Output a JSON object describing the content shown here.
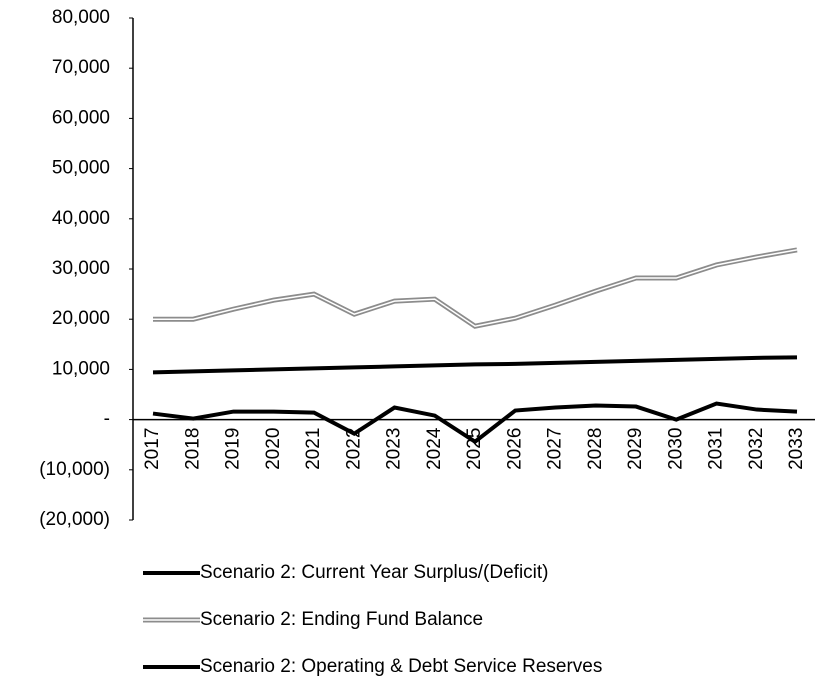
{
  "chart_data": {
    "type": "line",
    "categories": [
      "2017",
      "2018",
      "2019",
      "2020",
      "2021",
      "2022",
      "2023",
      "2024",
      "2025",
      "2026",
      "2027",
      "2028",
      "2029",
      "2030",
      "2031",
      "2032",
      "2033"
    ],
    "series": [
      {
        "name": "Scenario 2: Current Year Surplus/(Deficit)",
        "color": "#000000",
        "values": [
          1200,
          200,
          1600,
          1600,
          1400,
          -2800,
          2400,
          800,
          -4400,
          1800,
          2400,
          2800,
          2600,
          0,
          3200,
          2000,
          1600
        ]
      },
      {
        "name": "Scenario 2: Ending Fund Balance",
        "color": "#8c8c8c",
        "line_style": "double",
        "values": [
          20000,
          20000,
          22000,
          23800,
          25000,
          21000,
          23600,
          24000,
          18600,
          20200,
          22800,
          25600,
          28200,
          28200,
          30800,
          32400,
          33800
        ]
      },
      {
        "name": "Scenario 2: Operating & Debt Service Reserves",
        "color": "#000000",
        "values": [
          9400,
          9600,
          9800,
          10000,
          10200,
          10400,
          10600,
          10800,
          11000,
          11100,
          11300,
          11500,
          11700,
          11900,
          12100,
          12300,
          12400
        ]
      }
    ],
    "ylim": [
      -20000,
      80000
    ],
    "yticks": [
      {
        "value": -20000,
        "label": "(20,000)"
      },
      {
        "value": -10000,
        "label": "(10,000)"
      },
      {
        "value": 0,
        "label": "-"
      },
      {
        "value": 10000,
        "label": "10,000"
      },
      {
        "value": 20000,
        "label": "20,000"
      },
      {
        "value": 30000,
        "label": "30,000"
      },
      {
        "value": 40000,
        "label": "40,000"
      },
      {
        "value": 50000,
        "label": "50,000"
      },
      {
        "value": 60000,
        "label": "60,000"
      },
      {
        "value": 70000,
        "label": "70,000"
      },
      {
        "value": 80000,
        "label": "80,000"
      }
    ],
    "grid": false,
    "legend": "bottom"
  }
}
